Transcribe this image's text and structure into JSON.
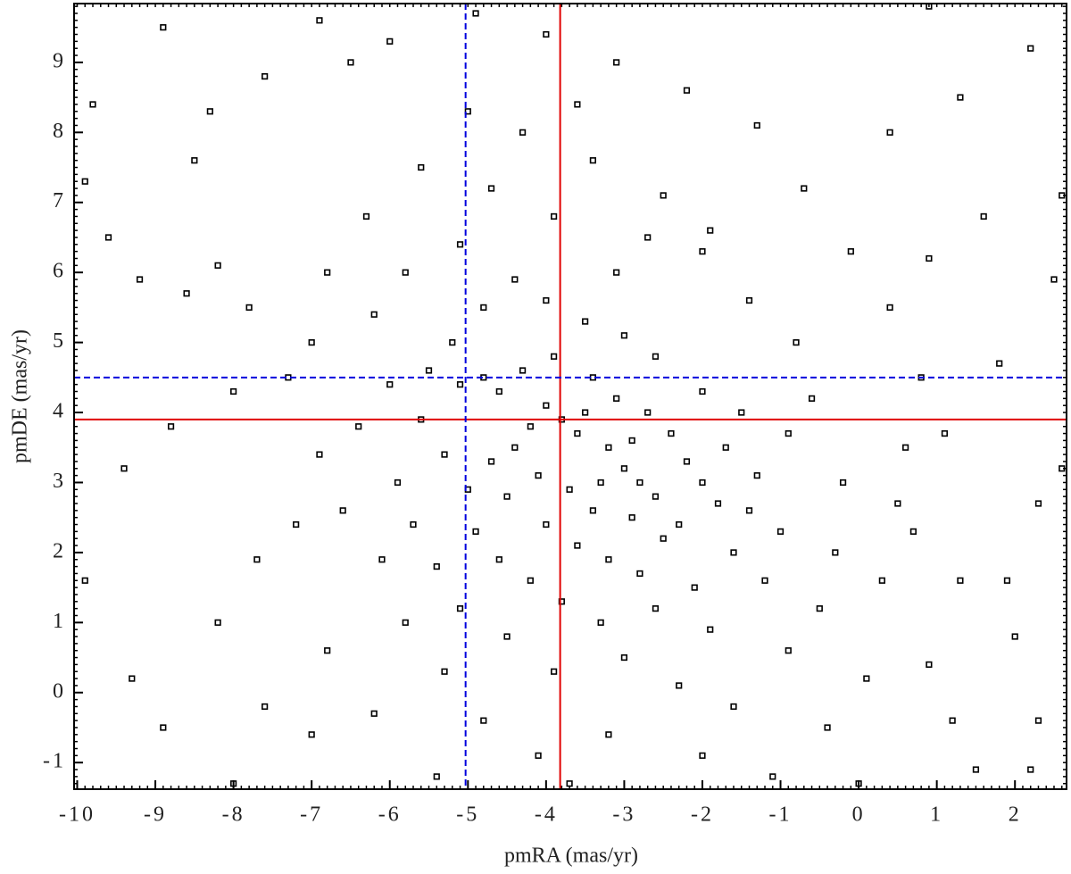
{
  "chart_data": {
    "type": "scatter",
    "x_label": "pmRA (mas/yr)",
    "y_label": "pmDE (mas/yr)",
    "xlim": [
      -10.04,
      2.66
    ],
    "ylim": [
      -1.38,
      9.84
    ],
    "xticks": [
      -10,
      -9,
      -8,
      -7,
      -6,
      -5,
      -4,
      -3,
      -2,
      -1,
      0,
      1,
      2
    ],
    "yticks": [
      -1,
      0,
      1,
      2,
      3,
      4,
      5,
      6,
      7,
      8,
      9
    ],
    "minor_step": 0.1,
    "color": "#000000",
    "x": [
      -3.8,
      -3.6,
      -4.0,
      -3.5,
      -3.2,
      -3.0,
      -2.8,
      -2.6,
      -2.9,
      -3.3,
      -4.2,
      -4.4,
      -4.6,
      -4.8,
      -5.1,
      -4.3,
      -3.9,
      -3.4,
      -3.1,
      -2.7,
      -2.4,
      -2.2,
      -2.0,
      -1.8,
      -2.3,
      -2.5,
      -2.9,
      -3.4,
      -3.7,
      -4.1,
      -4.5,
      -4.7,
      -4.0,
      -3.6,
      -3.2,
      -2.8,
      -2.1,
      -1.6,
      -1.4,
      -1.7,
      -1.5,
      -2.0,
      -2.6,
      -3.0,
      -3.5,
      -4.0,
      -4.4,
      -4.8,
      -5.2,
      -5.5,
      -5.6,
      -5.3,
      -5.0,
      -4.9,
      -4.6,
      -4.2,
      -3.8,
      -3.3,
      -2.6,
      -1.9,
      -1.2,
      -1.0,
      -1.3,
      -0.9,
      -3.1,
      -2.7,
      -3.9,
      -4.7,
      -5.1,
      -5.8,
      -6.2,
      -6.0,
      -6.4,
      -5.9,
      -5.7,
      -5.4,
      -5.1,
      -4.5,
      -3.9,
      -3.0,
      -2.3,
      -1.6,
      -0.9,
      -0.5,
      -0.3,
      -0.2,
      -0.6,
      -0.8,
      -1.4,
      -2.0,
      -2.5,
      -3.4,
      -4.3,
      -5.0,
      -5.6,
      -6.3,
      -6.8,
      -7.0,
      -7.3,
      -6.9,
      -6.6,
      -6.1,
      -5.8,
      -5.3,
      -4.8,
      -4.1,
      -3.2,
      -2.0,
      -1.1,
      -0.4,
      0.1,
      0.3,
      0.5,
      0.6,
      0.8,
      0.4,
      -0.1,
      -0.7,
      -1.3,
      -2.2,
      -3.1,
      -4.0,
      -4.9,
      -6.0,
      -6.9,
      -7.6,
      -8.3,
      -8.9,
      -9.8,
      -9.9,
      -9.6,
      -9.2,
      -8.6,
      -8.2,
      -7.8,
      -8.0,
      -8.8,
      -9.4,
      -9.9,
      -9.3,
      -8.9,
      -8.2,
      -7.7,
      -7.2,
      -6.8,
      -7.0,
      -6.2,
      -7.6,
      0.9,
      1.3,
      1.6,
      2.2,
      2.6,
      2.5,
      2.6,
      2.3,
      1.9,
      1.3,
      2.0,
      1.5,
      0.9,
      2.3,
      2.2,
      1.2,
      0.0,
      -3.7,
      -5.4,
      -8.0,
      1.8,
      1.1,
      0.7,
      -1.9,
      -3.6,
      0.4,
      0.9,
      -6.5,
      -8.5
    ],
    "values": [
      3.9,
      3.7,
      4.1,
      4.0,
      3.5,
      3.2,
      3.0,
      2.8,
      3.6,
      3.0,
      3.8,
      3.5,
      4.3,
      4.5,
      4.4,
      4.6,
      4.8,
      4.5,
      4.2,
      4.0,
      3.7,
      3.3,
      3.0,
      2.7,
      2.4,
      2.2,
      2.5,
      2.6,
      2.9,
      3.1,
      2.8,
      3.3,
      2.4,
      2.1,
      1.9,
      1.7,
      1.5,
      2.0,
      2.6,
      3.5,
      4.0,
      4.3,
      4.8,
      5.1,
      5.3,
      5.6,
      5.9,
      5.5,
      5.0,
      4.6,
      3.9,
      3.4,
      2.9,
      2.3,
      1.9,
      1.6,
      1.3,
      1.0,
      1.2,
      0.9,
      1.6,
      2.3,
      3.1,
      3.7,
      6.0,
      6.5,
      6.8,
      7.2,
      6.4,
      6.0,
      5.4,
      4.4,
      3.8,
      3.0,
      2.4,
      1.8,
      1.2,
      0.8,
      0.3,
      0.5,
      0.1,
      -0.2,
      0.6,
      1.2,
      2.0,
      3.0,
      4.2,
      5.0,
      5.6,
      6.3,
      7.1,
      7.6,
      8.0,
      8.3,
      7.5,
      6.8,
      6.0,
      5.0,
      4.5,
      3.4,
      2.6,
      1.9,
      1.0,
      0.3,
      -0.4,
      -0.9,
      -0.6,
      -0.9,
      -1.2,
      -0.5,
      0.2,
      1.6,
      2.7,
      3.5,
      4.5,
      5.5,
      6.3,
      7.2,
      8.1,
      8.6,
      9.0,
      9.4,
      9.7,
      9.3,
      9.6,
      8.8,
      8.3,
      9.5,
      8.4,
      7.3,
      6.5,
      5.9,
      5.7,
      6.1,
      5.5,
      4.3,
      3.8,
      3.2,
      1.6,
      0.2,
      -0.5,
      1.0,
      1.9,
      2.4,
      0.6,
      -0.6,
      -0.3,
      -0.2,
      6.2,
      8.5,
      6.8,
      9.2,
      7.1,
      5.9,
      3.2,
      2.7,
      1.6,
      1.6,
      0.8,
      -1.1,
      0.4,
      -0.4,
      -1.1,
      -0.4,
      -1.3,
      -1.3,
      -1.2,
      -1.3,
      4.7,
      3.7,
      2.3,
      6.6,
      8.4,
      8.0,
      9.8,
      9.0,
      7.6
    ],
    "reference_lines": [
      {
        "axis": "x",
        "value": -3.82,
        "color": "#e00000",
        "dashed": false
      },
      {
        "axis": "y",
        "value": 3.9,
        "color": "#e00000",
        "dashed": false
      },
      {
        "axis": "x",
        "value": -5.03,
        "color": "#0000dd",
        "dashed": true
      },
      {
        "axis": "y",
        "value": 4.5,
        "color": "#0000dd",
        "dashed": true
      }
    ]
  }
}
